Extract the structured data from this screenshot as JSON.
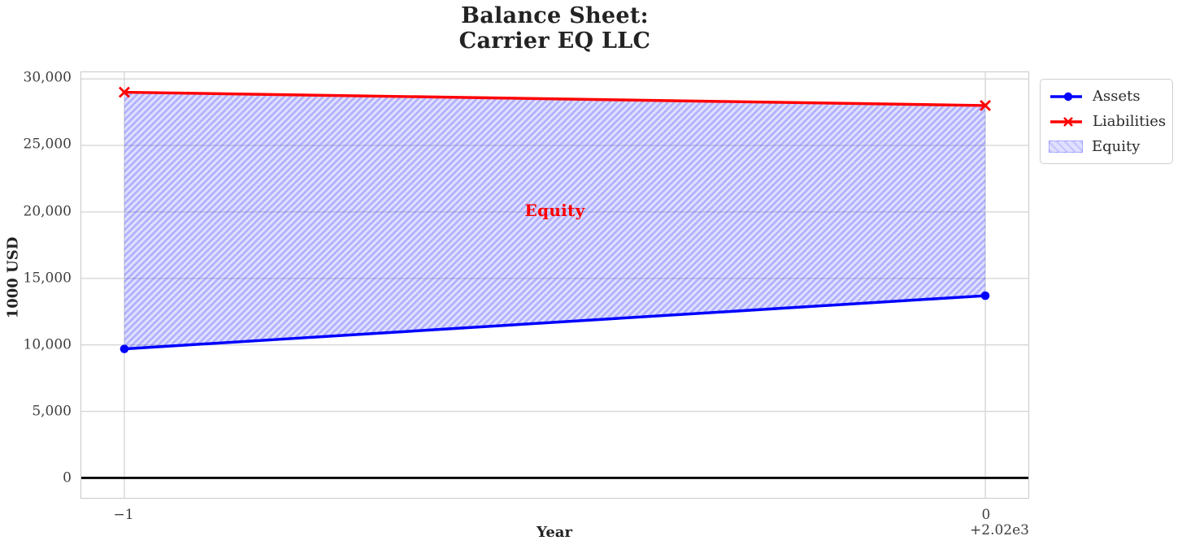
{
  "figure": {
    "title_line1": "Balance Sheet:",
    "title_line2": "Carrier EQ LLC"
  },
  "axes": {
    "x_label": "Year",
    "y_label": "1000 USD",
    "x_offset_text": "+2.02e3"
  },
  "annotation": {
    "text": "Equity",
    "color": "#ff0000"
  },
  "legend": {
    "items": [
      {
        "label": "Assets"
      },
      {
        "label": "Liabilities"
      },
      {
        "label": "Equity"
      }
    ]
  },
  "chart_data": {
    "type": "line",
    "title": "Balance Sheet: Carrier EQ LLC",
    "xlabel": "Year",
    "ylabel": "1000 USD",
    "x_years": [
      2019,
      2020
    ],
    "x_offset_value": 2020,
    "x_offset_label": "+2.02e3",
    "x_tick_values": [
      -1,
      0
    ],
    "x_tick_labels": [
      "−1",
      "0"
    ],
    "y_ticks": [
      0,
      5000,
      10000,
      15000,
      20000,
      25000,
      30000
    ],
    "y_tick_labels": [
      "0",
      "5,000",
      "10,000",
      "15,000",
      "20,000",
      "25,000",
      "30,000"
    ],
    "xlim": [
      -1.05,
      0.05
    ],
    "ylim": [
      -1500,
      30500
    ],
    "grid": true,
    "zero_line_y": 0,
    "series": [
      {
        "name": "Assets",
        "values": [
          9700,
          13700
        ],
        "color": "#0000ff",
        "marker": "circle"
      },
      {
        "name": "Liabilities",
        "values": [
          29000,
          28000
        ],
        "color": "#ff0000",
        "marker": "x"
      }
    ],
    "fill_between": {
      "name": "Equity",
      "between": [
        "Assets",
        "Liabilities"
      ],
      "facecolor": "rgba(0,0,255,0.12)",
      "hatch_color": "rgba(0,0,255,0.22)",
      "hatch": "//"
    },
    "colors": {
      "grid": "#d7d7d7",
      "spine": "#c9c9c9",
      "zero_line": "#000000",
      "tick_text": "#3f3f3f"
    },
    "legend_position": "outside upper right"
  }
}
